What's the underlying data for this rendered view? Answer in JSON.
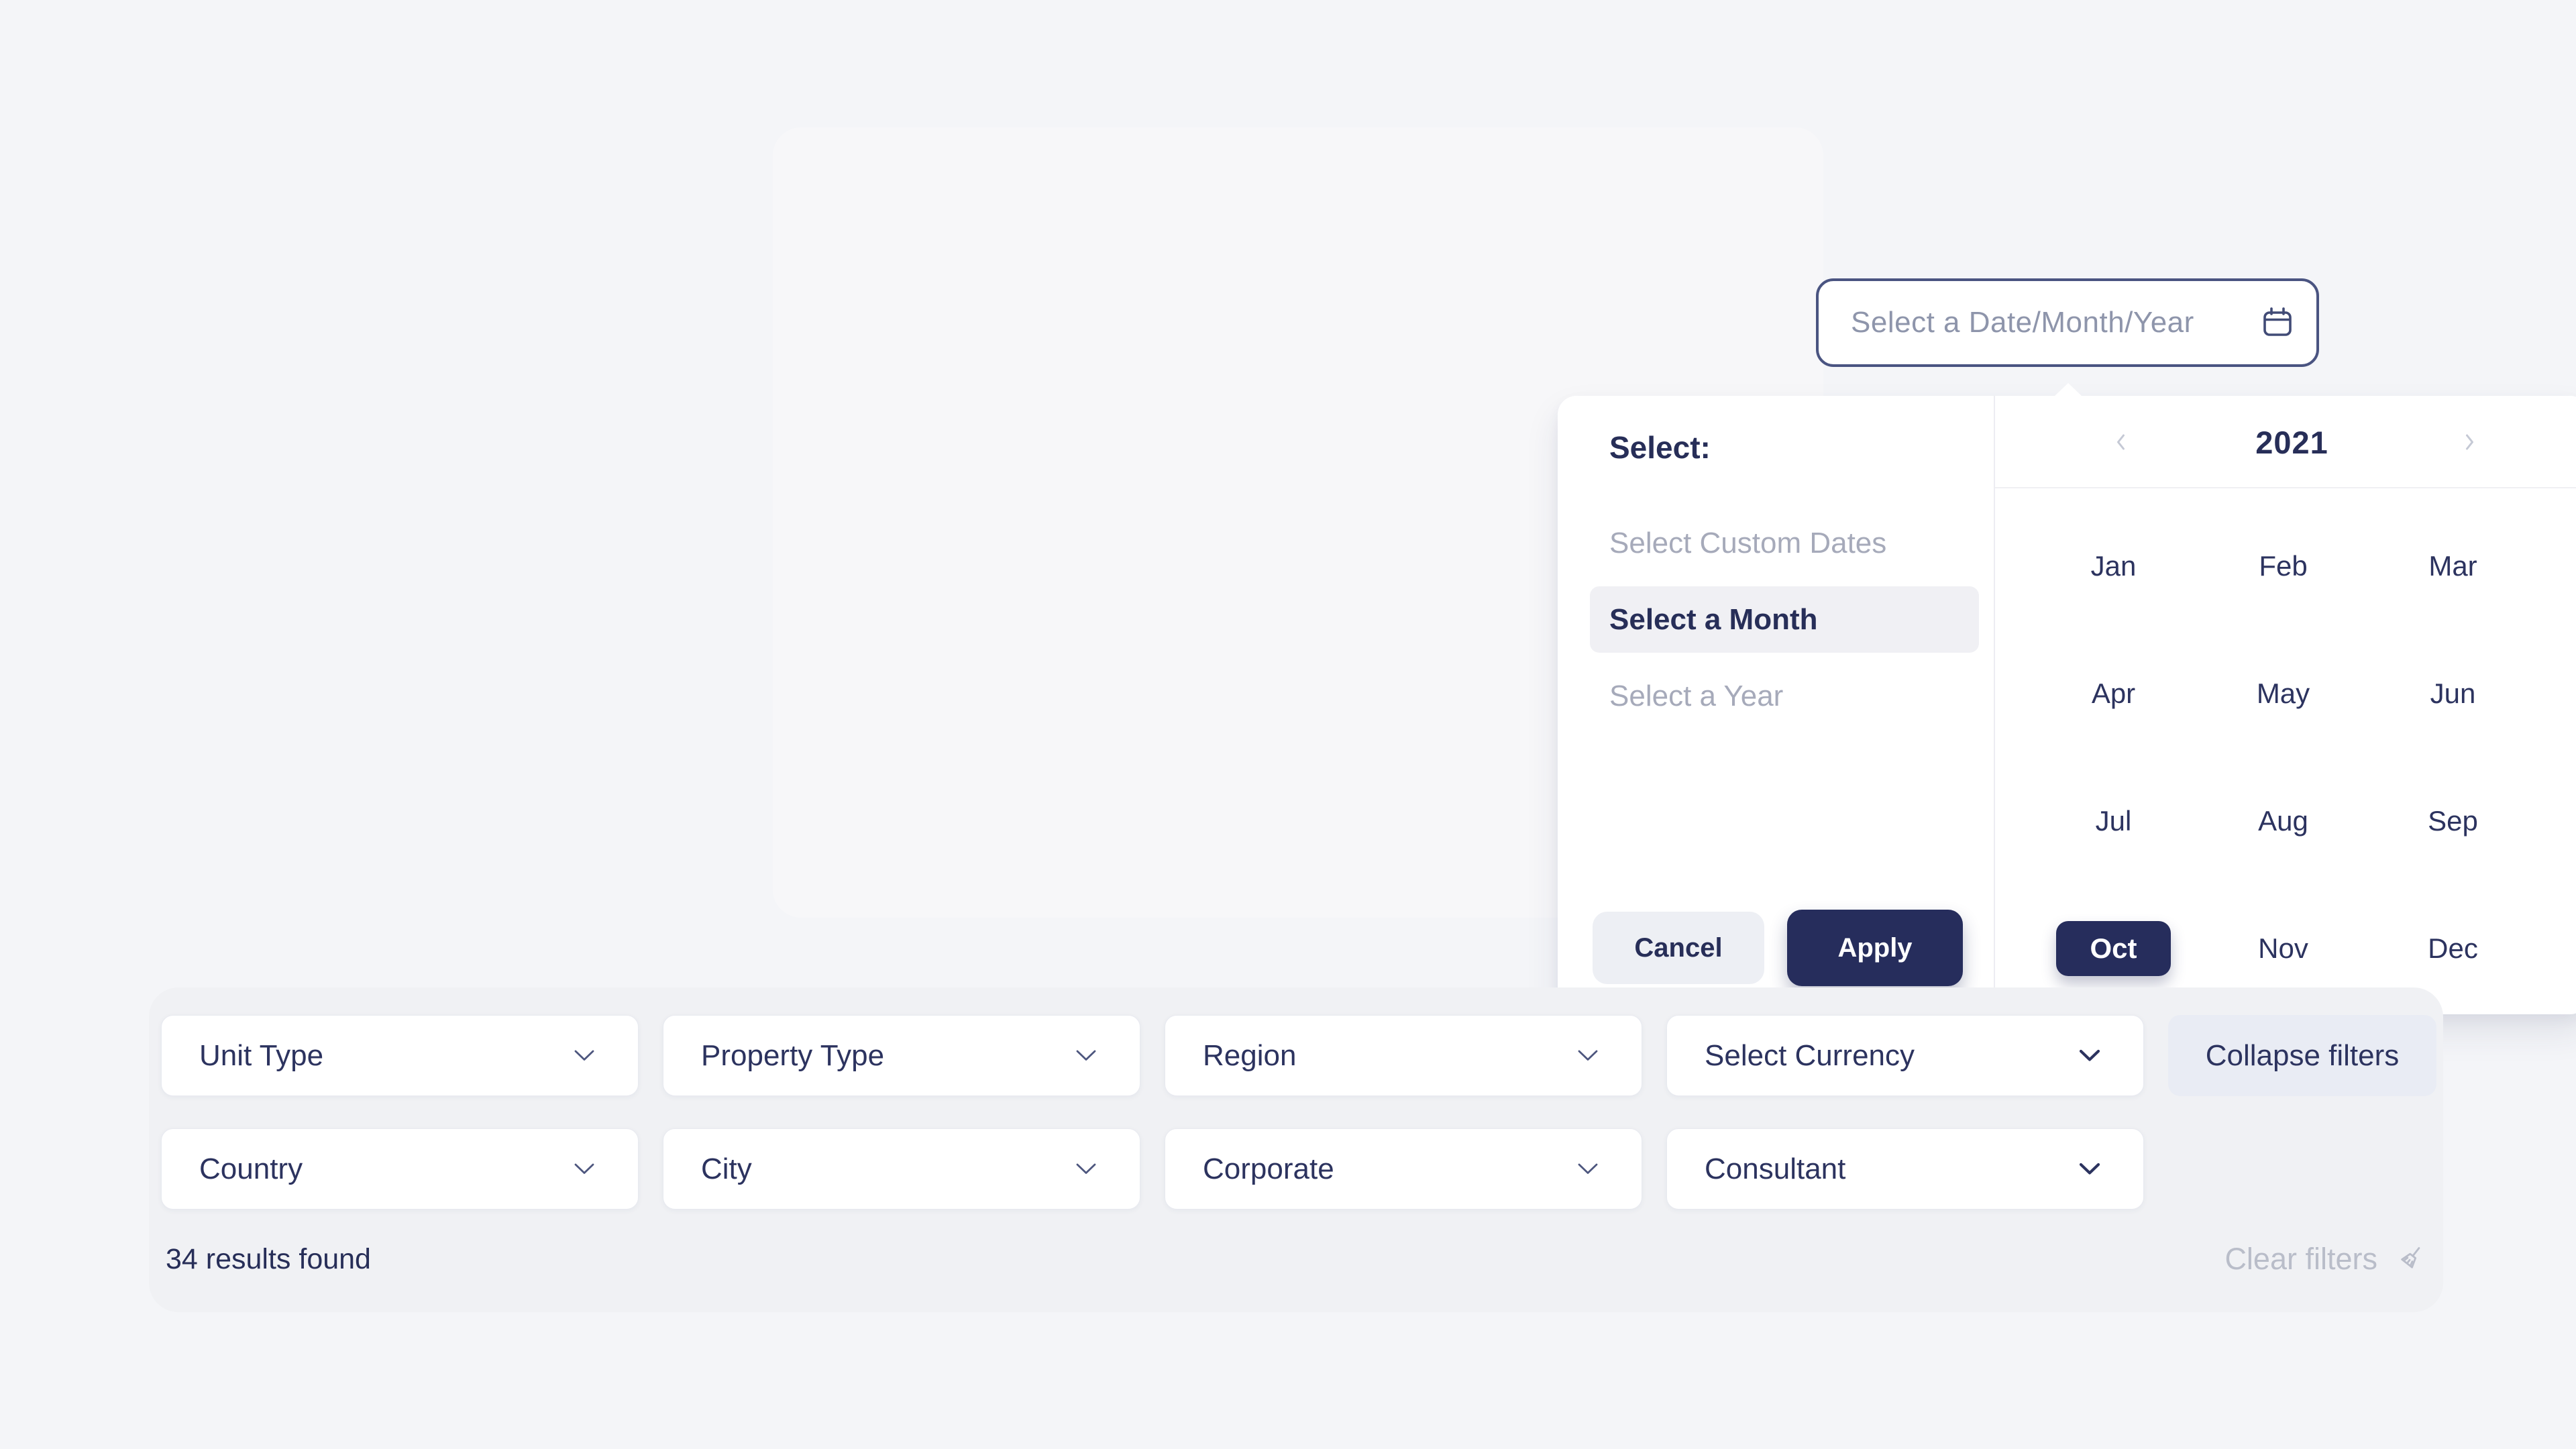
{
  "colors": {
    "page_bg": "#f4f5f8",
    "card_bg": "#f7f7f9",
    "filter_panel_bg": "#f0f1f4",
    "accent_navy": "#262d5c",
    "text_navy": "#2c335f",
    "muted_text": "#a6aaba",
    "placeholder_text": "#8e95ab",
    "clear_gray": "#b9bdc9"
  },
  "date_picker": {
    "input": {
      "placeholder": "Select a Date/Month/Year"
    },
    "menu": {
      "title": "Select:",
      "items": [
        {
          "label": "Select Custom Dates",
          "active": false
        },
        {
          "label": "Select a Month",
          "active": true
        },
        {
          "label": "Select a Year",
          "active": false
        }
      ]
    },
    "actions": {
      "cancel": "Cancel",
      "apply": "Apply"
    },
    "calendar": {
      "year": "2021",
      "months": [
        "Jan",
        "Feb",
        "Mar",
        "Apr",
        "May",
        "Jun",
        "Jul",
        "Aug",
        "Sep",
        "Oct",
        "Nov",
        "Dec"
      ],
      "selected_month": "Oct"
    }
  },
  "filters": {
    "row1": [
      "Unit Type",
      "Property Type",
      "Region",
      "Select Currency"
    ],
    "row2": [
      "Country",
      "City",
      "Corporate",
      "Consultant"
    ],
    "collapse_label": "Collapse filters",
    "results_text": "34 results found",
    "clear_label": "Clear filters"
  },
  "icons": {
    "input_icon": "calendar-icon",
    "prev_icon": "chevron-left-icon",
    "next_icon": "chevron-right-icon",
    "dropdown_icon": "chevron-down-icon",
    "clear_icon": "broom-icon"
  }
}
